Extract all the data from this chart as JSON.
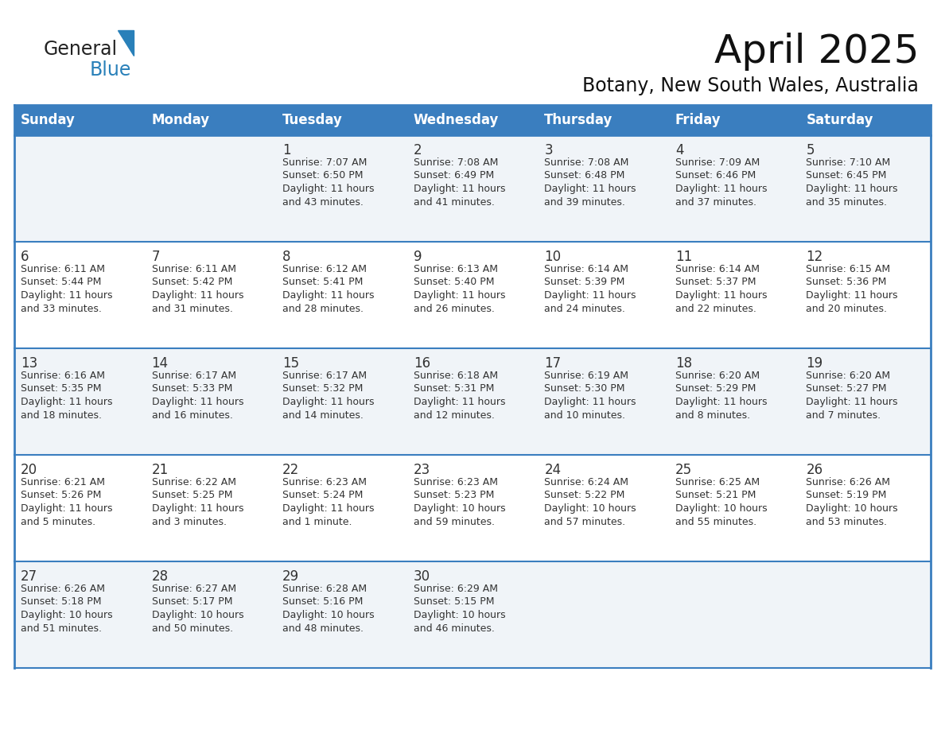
{
  "title": "April 2025",
  "subtitle": "Botany, New South Wales, Australia",
  "header_bg_color": "#3A7EBF",
  "header_text_color": "#FFFFFF",
  "row_bg_even": "#F0F4F8",
  "row_bg_odd": "#FFFFFF",
  "border_color": "#3A7EBF",
  "cell_border_color": "#3A7EBF",
  "text_color": "#333333",
  "days_of_week": [
    "Sunday",
    "Monday",
    "Tuesday",
    "Wednesday",
    "Thursday",
    "Friday",
    "Saturday"
  ],
  "calendar_data": [
    [
      "",
      "",
      "1\nSunrise: 7:07 AM\nSunset: 6:50 PM\nDaylight: 11 hours\nand 43 minutes.",
      "2\nSunrise: 7:08 AM\nSunset: 6:49 PM\nDaylight: 11 hours\nand 41 minutes.",
      "3\nSunrise: 7:08 AM\nSunset: 6:48 PM\nDaylight: 11 hours\nand 39 minutes.",
      "4\nSunrise: 7:09 AM\nSunset: 6:46 PM\nDaylight: 11 hours\nand 37 minutes.",
      "5\nSunrise: 7:10 AM\nSunset: 6:45 PM\nDaylight: 11 hours\nand 35 minutes."
    ],
    [
      "6\nSunrise: 6:11 AM\nSunset: 5:44 PM\nDaylight: 11 hours\nand 33 minutes.",
      "7\nSunrise: 6:11 AM\nSunset: 5:42 PM\nDaylight: 11 hours\nand 31 minutes.",
      "8\nSunrise: 6:12 AM\nSunset: 5:41 PM\nDaylight: 11 hours\nand 28 minutes.",
      "9\nSunrise: 6:13 AM\nSunset: 5:40 PM\nDaylight: 11 hours\nand 26 minutes.",
      "10\nSunrise: 6:14 AM\nSunset: 5:39 PM\nDaylight: 11 hours\nand 24 minutes.",
      "11\nSunrise: 6:14 AM\nSunset: 5:37 PM\nDaylight: 11 hours\nand 22 minutes.",
      "12\nSunrise: 6:15 AM\nSunset: 5:36 PM\nDaylight: 11 hours\nand 20 minutes."
    ],
    [
      "13\nSunrise: 6:16 AM\nSunset: 5:35 PM\nDaylight: 11 hours\nand 18 minutes.",
      "14\nSunrise: 6:17 AM\nSunset: 5:33 PM\nDaylight: 11 hours\nand 16 minutes.",
      "15\nSunrise: 6:17 AM\nSunset: 5:32 PM\nDaylight: 11 hours\nand 14 minutes.",
      "16\nSunrise: 6:18 AM\nSunset: 5:31 PM\nDaylight: 11 hours\nand 12 minutes.",
      "17\nSunrise: 6:19 AM\nSunset: 5:30 PM\nDaylight: 11 hours\nand 10 minutes.",
      "18\nSunrise: 6:20 AM\nSunset: 5:29 PM\nDaylight: 11 hours\nand 8 minutes.",
      "19\nSunrise: 6:20 AM\nSunset: 5:27 PM\nDaylight: 11 hours\nand 7 minutes."
    ],
    [
      "20\nSunrise: 6:21 AM\nSunset: 5:26 PM\nDaylight: 11 hours\nand 5 minutes.",
      "21\nSunrise: 6:22 AM\nSunset: 5:25 PM\nDaylight: 11 hours\nand 3 minutes.",
      "22\nSunrise: 6:23 AM\nSunset: 5:24 PM\nDaylight: 11 hours\nand 1 minute.",
      "23\nSunrise: 6:23 AM\nSunset: 5:23 PM\nDaylight: 10 hours\nand 59 minutes.",
      "24\nSunrise: 6:24 AM\nSunset: 5:22 PM\nDaylight: 10 hours\nand 57 minutes.",
      "25\nSunrise: 6:25 AM\nSunset: 5:21 PM\nDaylight: 10 hours\nand 55 minutes.",
      "26\nSunrise: 6:26 AM\nSunset: 5:19 PM\nDaylight: 10 hours\nand 53 minutes."
    ],
    [
      "27\nSunrise: 6:26 AM\nSunset: 5:18 PM\nDaylight: 10 hours\nand 51 minutes.",
      "28\nSunrise: 6:27 AM\nSunset: 5:17 PM\nDaylight: 10 hours\nand 50 minutes.",
      "29\nSunrise: 6:28 AM\nSunset: 5:16 PM\nDaylight: 10 hours\nand 48 minutes.",
      "30\nSunrise: 6:29 AM\nSunset: 5:15 PM\nDaylight: 10 hours\nand 46 minutes.",
      "",
      "",
      ""
    ]
  ],
  "logo_text_general": "General",
  "logo_text_blue": "Blue",
  "logo_color_general": "#222222",
  "logo_color_blue": "#2980B9",
  "logo_triangle_color": "#2980B9",
  "title_fontsize": 36,
  "subtitle_fontsize": 17,
  "header_fontsize": 12,
  "day_num_fontsize": 12,
  "cell_text_fontsize": 9
}
